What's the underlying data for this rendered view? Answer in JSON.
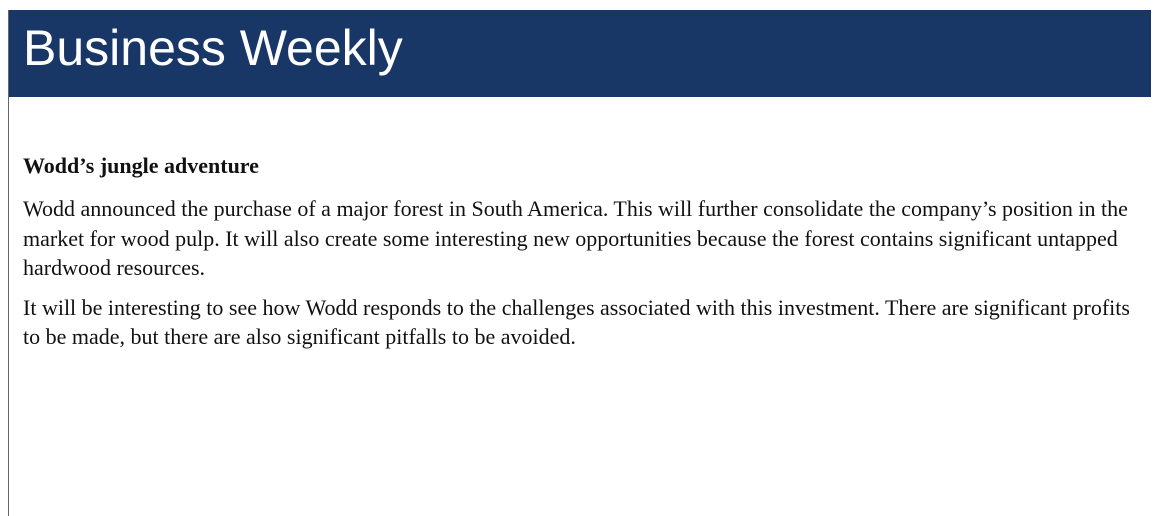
{
  "header": {
    "title": "Business Weekly"
  },
  "article": {
    "heading": "Wodd’s jungle adventure",
    "paragraphs": [
      "Wodd announced the purchase of a major forest in South America. This will further consolidate the company’s position in the market for wood pulp. It will also create some interesting new opportunities because the forest contains significant untapped hardwood resources.",
      "It will be interesting to see how Wodd responds to the challenges associated with this investment. There are significant profits to be made, but there are also significant pitfalls to be avoided."
    ]
  }
}
